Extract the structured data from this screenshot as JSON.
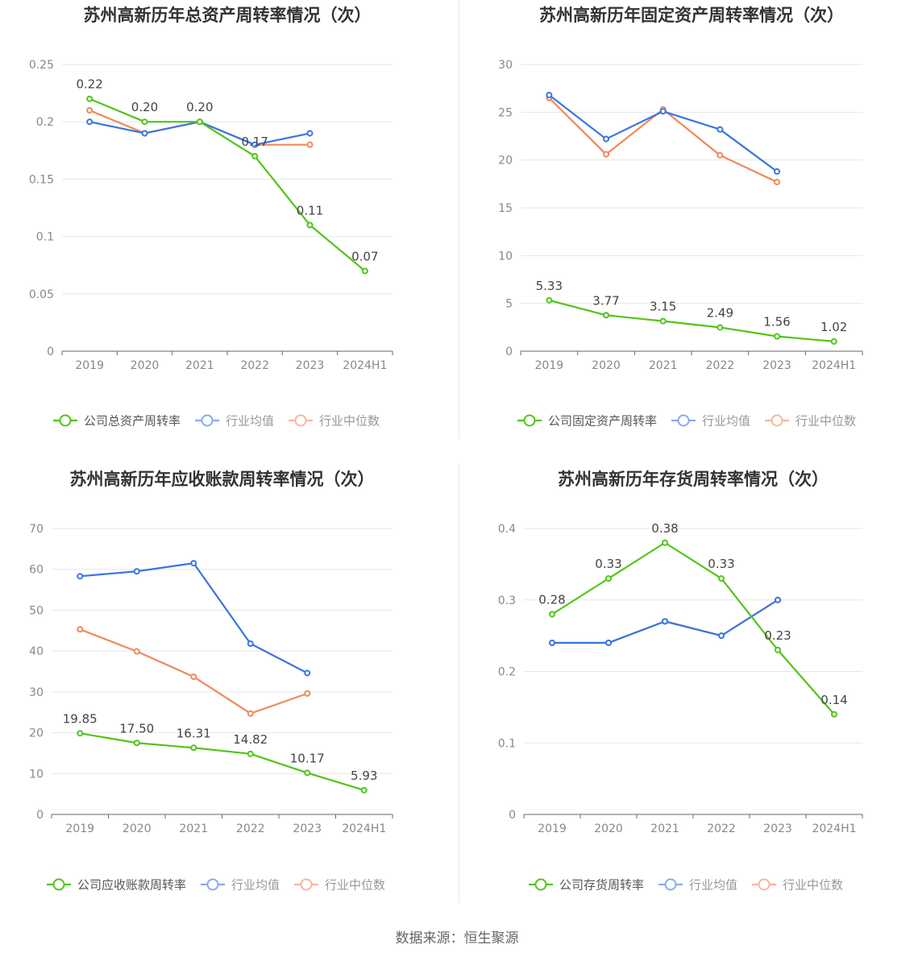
{
  "footer": {
    "source": "数据来源：恒生聚源"
  },
  "colors": {
    "company": "#52c41a",
    "industry_avg": "#3a75e0",
    "industry_median": "#f0885a",
    "grid": "#e4e6ee",
    "axis": "#666666",
    "tick_text": "#888888",
    "title": "#333333"
  },
  "chart_data": [
    {
      "type": "line",
      "title": "苏州高新历年总资产周转率情况（次）",
      "categories": [
        "2019",
        "2020",
        "2021",
        "2022",
        "2023",
        "2024H1"
      ],
      "ylim": [
        0,
        0.25
      ],
      "yticks": [
        0,
        0.05,
        0.1,
        0.15,
        0.2,
        0.25
      ],
      "ytick_labels": [
        "0",
        "0.05",
        "0.1",
        "0.15",
        "0.2",
        "0.25"
      ],
      "legend_position": "bottom",
      "series": [
        {
          "name": "公司总资产周转率",
          "color": "#52c41a",
          "values": [
            0.22,
            0.2,
            0.2,
            0.17,
            0.11,
            0.07
          ],
          "labels": [
            "0.22",
            "0.20",
            "0.20",
            "0.17",
            "0.11",
            "0.07"
          ]
        },
        {
          "name": "行业均值",
          "color": "#3a75e0",
          "values": [
            0.2,
            0.19,
            0.2,
            0.18,
            0.19,
            null
          ]
        },
        {
          "name": "行业中位数",
          "color": "#f0885a",
          "values": [
            0.21,
            0.19,
            0.2,
            0.18,
            0.18,
            null
          ]
        }
      ]
    },
    {
      "type": "line",
      "title": "苏州高新历年固定资产周转率情况（次）",
      "categories": [
        "2019",
        "2020",
        "2021",
        "2022",
        "2023",
        "2024H1"
      ],
      "ylim": [
        0,
        30
      ],
      "yticks": [
        0,
        5,
        10,
        15,
        20,
        25,
        30
      ],
      "ytick_labels": [
        "0",
        "5",
        "10",
        "15",
        "20",
        "25",
        "30"
      ],
      "legend_position": "bottom",
      "series": [
        {
          "name": "公司固定资产周转率",
          "color": "#52c41a",
          "values": [
            5.33,
            3.77,
            3.15,
            2.49,
            1.56,
            1.02
          ],
          "labels": [
            "5.33",
            "3.77",
            "3.15",
            "2.49",
            "1.56",
            "1.02"
          ]
        },
        {
          "name": "行业均值",
          "color": "#3a75e0",
          "values": [
            26.8,
            22.2,
            25.1,
            23.2,
            18.8,
            null
          ]
        },
        {
          "name": "行业中位数",
          "color": "#f0885a",
          "values": [
            26.5,
            20.6,
            25.3,
            20.5,
            17.7,
            null
          ]
        }
      ]
    },
    {
      "type": "line",
      "title": "苏州高新历年应收账款周转率情况（次）",
      "categories": [
        "2019",
        "2020",
        "2021",
        "2022",
        "2023",
        "2024H1"
      ],
      "ylim": [
        0,
        70
      ],
      "yticks": [
        0,
        10,
        20,
        30,
        40,
        50,
        60,
        70
      ],
      "ytick_labels": [
        "0",
        "10",
        "20",
        "30",
        "40",
        "50",
        "60",
        "70"
      ],
      "legend_position": "bottom",
      "series": [
        {
          "name": "公司应收账款周转率",
          "color": "#52c41a",
          "values": [
            19.85,
            17.5,
            16.31,
            14.82,
            10.17,
            5.93
          ],
          "labels": [
            "19.85",
            "17.50",
            "16.31",
            "14.82",
            "10.17",
            "5.93"
          ]
        },
        {
          "name": "行业均值",
          "color": "#3a75e0",
          "values": [
            58.3,
            59.5,
            61.5,
            41.8,
            34.6,
            null
          ]
        },
        {
          "name": "行业中位数",
          "color": "#f0885a",
          "values": [
            45.3,
            39.9,
            33.7,
            24.7,
            29.6,
            null
          ]
        }
      ]
    },
    {
      "type": "line",
      "title": "苏州高新历年存货周转率情况（次）",
      "categories": [
        "2019",
        "2020",
        "2021",
        "2022",
        "2023",
        "2024H1"
      ],
      "ylim": [
        0,
        0.4
      ],
      "yticks": [
        0,
        0.1,
        0.2,
        0.3,
        0.4
      ],
      "ytick_labels": [
        "0",
        "0.1",
        "0.2",
        "0.3",
        "0.4"
      ],
      "legend_position": "bottom",
      "series": [
        {
          "name": "公司存货周转率",
          "color": "#52c41a",
          "values": [
            0.28,
            0.33,
            0.38,
            0.33,
            0.23,
            0.14
          ],
          "labels": [
            "0.28",
            "0.33",
            "0.38",
            "0.33",
            "0.23",
            "0.14"
          ]
        },
        {
          "name": "行业均值",
          "color": "#3a75e0",
          "values": [
            0.24,
            0.24,
            0.27,
            0.25,
            0.3,
            null
          ]
        },
        {
          "name": "行业中位数",
          "color": "#f0885a",
          "values": [
            0.24,
            0.24,
            0.27,
            0.25,
            0.3,
            null
          ]
        }
      ]
    }
  ]
}
